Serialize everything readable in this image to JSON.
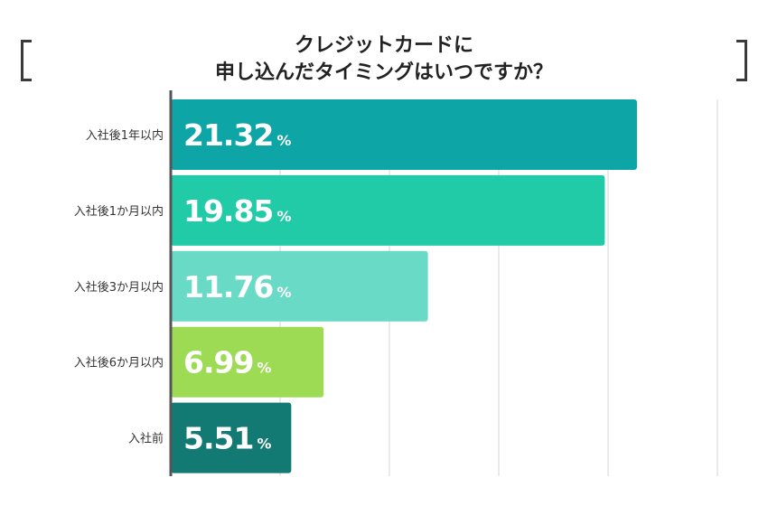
{
  "title_lines": [
    "クレジットカードに",
    "申し込んだタイミングはいつですか？"
  ],
  "chart_data": {
    "type": "bar",
    "orientation": "horizontal",
    "categories": [
      "入社後1年以内",
      "入社後1か月以内",
      "入社後3か月以内",
      "入社後6か月以内",
      "入社前"
    ],
    "values": [
      21.32,
      19.85,
      11.76,
      6.99,
      5.51
    ],
    "value_labels": [
      "21.32",
      "19.85",
      "11.76",
      "6.99",
      "5.51"
    ],
    "unit": "%",
    "colors": [
      "#0da5a5",
      "#21cba8",
      "#68dac6",
      "#9ddb54",
      "#127a72"
    ],
    "xlim": [
      0,
      25
    ],
    "grid": true,
    "title": "クレジットカードに申し込んだタイミングはいつですか？"
  }
}
